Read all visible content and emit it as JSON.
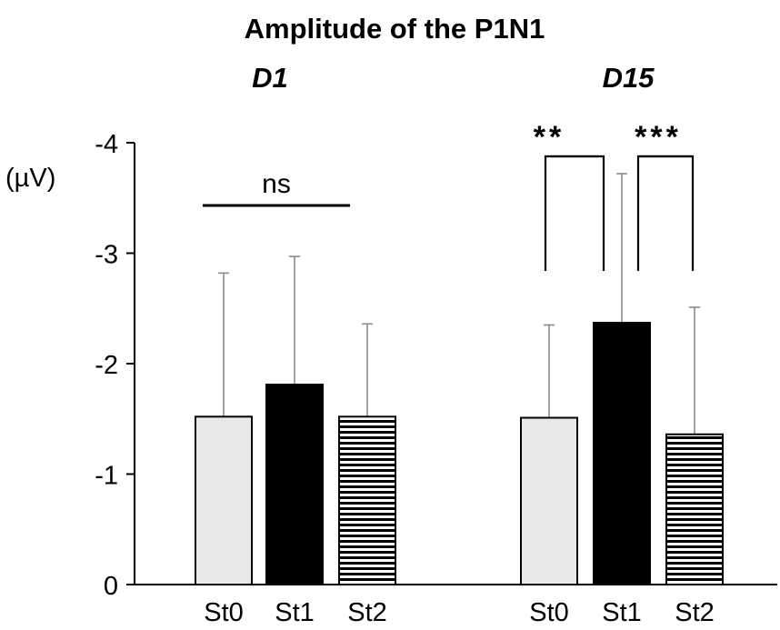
{
  "chart_data": {
    "type": "bar",
    "title": "Amplitude of the P1N1",
    "ylabel": "(µV)",
    "ylim": [
      0,
      -4
    ],
    "yticks": [
      {
        "value": 0,
        "label": "0"
      },
      {
        "value": -1,
        "label": "-1"
      },
      {
        "value": -2,
        "label": "-2"
      },
      {
        "value": -3,
        "label": "-3"
      },
      {
        "value": -4,
        "label": "-4"
      }
    ],
    "groups": [
      {
        "label": "D1",
        "bars": [
          {
            "category": "St0",
            "value": -1.52,
            "error": 1.3,
            "fill": "#e8e8e8",
            "pattern": "solid"
          },
          {
            "category": "St1",
            "value": -1.81,
            "error": 1.16,
            "fill": "#000000",
            "pattern": "solid"
          },
          {
            "category": "St2",
            "value": -1.52,
            "error": 0.84,
            "fill": "#ffffff",
            "pattern": "horizontal-stripes"
          }
        ],
        "annotations": [
          {
            "text": "ns",
            "from": 0,
            "to": 2,
            "type": "line"
          }
        ]
      },
      {
        "label": "D15",
        "bars": [
          {
            "category": "St0",
            "value": -1.51,
            "error": 0.84,
            "fill": "#e8e8e8",
            "pattern": "solid"
          },
          {
            "category": "St1",
            "value": -2.37,
            "error": 1.35,
            "fill": "#000000",
            "pattern": "solid"
          },
          {
            "category": "St2",
            "value": -1.36,
            "error": 1.15,
            "fill": "#ffffff",
            "pattern": "horizontal-stripes"
          }
        ],
        "annotations": [
          {
            "text": "**",
            "from": 0,
            "to": 1,
            "type": "bracket"
          },
          {
            "text": "***",
            "from": 1,
            "to": 2,
            "type": "bracket"
          }
        ]
      }
    ],
    "grid": false,
    "legend": "none"
  }
}
